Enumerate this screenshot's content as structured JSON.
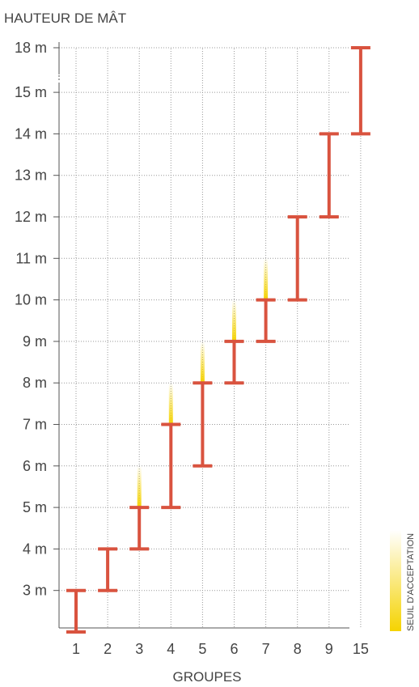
{
  "chart_data": {
    "type": "range-bar",
    "ylabel": "HAUTEUR DE MÂT",
    "xlabel": "GROUPES",
    "legend": "SEUIL D'ACCEPTATION",
    "legend_placement": "right-bottom, vertical",
    "grid": "dotted",
    "y_axis_break": "between 18 m and 15 m",
    "y_ticks": [
      {
        "label": "18 m",
        "value": 18
      },
      {
        "label": "15 m",
        "value": 15
      },
      {
        "label": "14 m",
        "value": 14
      },
      {
        "label": "13 m",
        "value": 13
      },
      {
        "label": "12 m",
        "value": 12
      },
      {
        "label": "11 m",
        "value": 11
      },
      {
        "label": "10 m",
        "value": 10
      },
      {
        "label": "9 m",
        "value": 9
      },
      {
        "label": "8 m",
        "value": 8
      },
      {
        "label": "7 m",
        "value": 7
      },
      {
        "label": "6 m",
        "value": 6
      },
      {
        "label": "5 m",
        "value": 5
      },
      {
        "label": "4 m",
        "value": 4
      },
      {
        "label": "3 m",
        "value": 3
      }
    ],
    "categories": [
      "1",
      "2",
      "3",
      "4",
      "5",
      "6",
      "7",
      "8",
      "9",
      "15"
    ],
    "series": [
      {
        "low": [
          2,
          3,
          4,
          5,
          6,
          8,
          9,
          10,
          12,
          14
        ],
        "high": [
          3,
          4,
          5,
          7,
          8,
          9,
          10,
          12,
          14,
          18
        ],
        "tolerance_top": [
          null,
          null,
          6,
          8,
          9,
          10,
          11,
          null,
          null,
          null
        ]
      }
    ],
    "colors": {
      "bar": "#d9533f",
      "tolerance": "#f5d300",
      "grid": "#999999",
      "axis": "#555555",
      "text": "#444444"
    }
  }
}
